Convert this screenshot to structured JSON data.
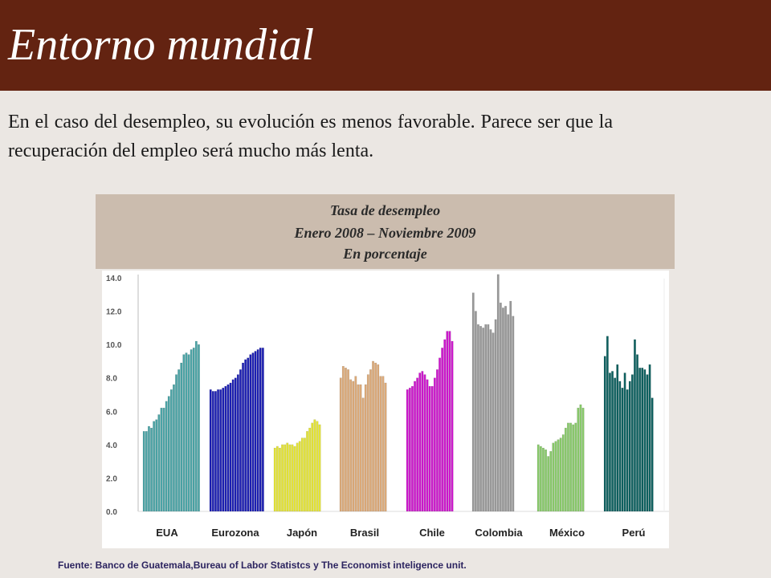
{
  "header": {
    "title": "Entorno mundial"
  },
  "body_text": "En el caso del desempleo, su evolución es menos favorable. Parece ser que la recuperación del empleo será mucho más lenta.",
  "caption": {
    "line1": "Tasa de desempleo",
    "line2": "Enero 2008 – Noviembre 2009",
    "line3": "En porcentaje"
  },
  "source": "Fuente:  Banco de Guatemala,Bureau of Labor Statistcs  y The Economist inteligence unit.",
  "colors": {
    "header_bg": "#632311",
    "page_bg": "#ebe7e3",
    "caption_bg": "#cbbcae"
  },
  "chart_data": {
    "type": "bar",
    "ylim": [
      0,
      14
    ],
    "yticks": [
      "14.0",
      "12.0",
      "10.0",
      "8.0",
      "6.0",
      "4.0",
      "2.0",
      "0.0"
    ],
    "grid": false,
    "groups": [
      {
        "name": "EUA",
        "color": "#4ba3a5",
        "values": [
          4.8,
          4.8,
          5.1,
          5.0,
          5.4,
          5.5,
          5.8,
          6.2,
          6.2,
          6.6,
          6.9,
          7.3,
          7.6,
          8.2,
          8.5,
          8.9,
          9.4,
          9.5,
          9.4,
          9.7,
          9.8,
          10.2,
          10.0
        ]
      },
      {
        "name": "Eurozona",
        "color": "#1c1fb2",
        "values": [
          7.3,
          7.2,
          7.2,
          7.3,
          7.3,
          7.4,
          7.5,
          7.6,
          7.7,
          7.9,
          8.0,
          8.2,
          8.5,
          8.9,
          9.1,
          9.2,
          9.4,
          9.5,
          9.6,
          9.7,
          9.8,
          9.8
        ]
      },
      {
        "name": "Japón",
        "color": "#e3e336",
        "values": [
          3.8,
          3.9,
          3.8,
          4.0,
          4.0,
          4.1,
          4.0,
          4.0,
          3.9,
          4.1,
          4.2,
          4.4,
          4.4,
          4.8,
          5.0,
          5.3,
          5.5,
          5.4,
          5.2
        ]
      },
      {
        "name": "Brasil",
        "color": "#dba978",
        "values": [
          8.0,
          8.7,
          8.6,
          8.5,
          7.9,
          7.8,
          8.1,
          7.6,
          7.6,
          6.8,
          7.6,
          8.2,
          8.5,
          9.0,
          8.9,
          8.8,
          8.1,
          8.1,
          7.7
        ]
      },
      {
        "name": "Chile",
        "color": "#cc18cc",
        "values": [
          7.3,
          7.4,
          7.5,
          7.8,
          8.0,
          8.3,
          8.4,
          8.2,
          7.9,
          7.5,
          7.5,
          8.0,
          8.5,
          9.2,
          9.8,
          10.3,
          10.8,
          10.8,
          10.2
        ]
      },
      {
        "name": "Colombia",
        "color": "#999999",
        "values": [
          13.1,
          12.0,
          11.2,
          11.1,
          11.0,
          11.2,
          11.2,
          10.9,
          10.7,
          11.5,
          14.2,
          12.5,
          12.2,
          12.3,
          11.8,
          12.6,
          11.7
        ]
      },
      {
        "name": "México",
        "color": "#88c96a",
        "values": [
          4.0,
          3.9,
          3.8,
          3.7,
          3.3,
          3.6,
          4.1,
          4.2,
          4.3,
          4.4,
          4.6,
          5.0,
          5.3,
          5.3,
          5.2,
          5.3,
          6.2,
          6.4,
          6.2
        ]
      },
      {
        "name": "Perú",
        "color": "#0e605f",
        "values": [
          9.3,
          10.5,
          8.3,
          8.4,
          8.0,
          8.8,
          7.8,
          7.4,
          8.3,
          7.3,
          7.8,
          8.2,
          10.3,
          9.4,
          8.6,
          8.6,
          8.5,
          8.2,
          8.8,
          6.8
        ]
      }
    ]
  }
}
